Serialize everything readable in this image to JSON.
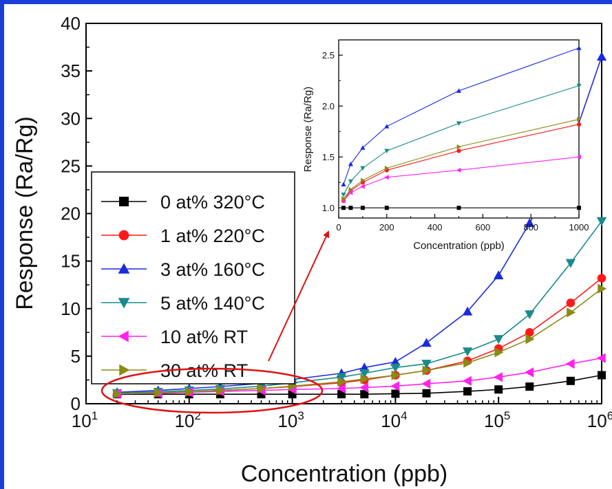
{
  "chart_data": [
    {
      "type": "line",
      "xscale": "log",
      "xlim": [
        10,
        1000000
      ],
      "ylim": [
        0,
        40
      ],
      "xlabel": "Concentration (ppb)",
      "ylabel": "Response (Ra/Rg)",
      "title": "",
      "xtick_bases": [
        "10",
        "10",
        "10",
        "10",
        "10",
        "10"
      ],
      "xtick_exps": [
        "1",
        "2",
        "3",
        "4",
        "5",
        "6"
      ],
      "yticks": [
        "0",
        "5",
        "10",
        "15",
        "20",
        "25",
        "30",
        "35",
        "40"
      ],
      "legend_position": "center-left",
      "series": [
        {
          "name": "0 at% 320°C",
          "color": "#000000",
          "marker": "square",
          "x": [
            20,
            50,
            100,
            200,
            500,
            1000,
            3000,
            5000,
            10000,
            20000,
            50000,
            100000,
            200000,
            500000,
            1000000
          ],
          "y": [
            1.0,
            1.0,
            1.0,
            1.0,
            1.0,
            1.0,
            1.0,
            1.0,
            1.05,
            1.1,
            1.3,
            1.5,
            1.8,
            2.4,
            3.0
          ]
        },
        {
          "name": "1 at% 220°C",
          "color": "#ff1a1a",
          "marker": "circle",
          "x": [
            20,
            50,
            100,
            200,
            500,
            1000,
            3000,
            5000,
            10000,
            20000,
            50000,
            100000,
            200000,
            500000,
            1000000
          ],
          "y": [
            1.05,
            1.15,
            1.25,
            1.4,
            1.6,
            1.8,
            2.2,
            2.5,
            3.0,
            3.5,
            4.5,
            5.8,
            7.5,
            10.6,
            13.2
          ]
        },
        {
          "name": "3 at% 160°C",
          "color": "#1a2bdd",
          "marker": "triangle-up",
          "x": [
            20,
            50,
            100,
            200,
            500,
            1000,
            3000,
            5000,
            10000,
            20000,
            50000,
            100000,
            200000,
            500000,
            1000000
          ],
          "y": [
            1.2,
            1.4,
            1.6,
            1.8,
            2.15,
            2.55,
            3.2,
            3.8,
            4.4,
            6.4,
            9.7,
            13.5,
            19.0,
            27.0,
            36.5
          ]
        },
        {
          "name": "5 at% 140°C",
          "color": "#1a8a8a",
          "marker": "triangle-down",
          "x": [
            20,
            50,
            100,
            200,
            500,
            1000,
            3000,
            5000,
            10000,
            20000,
            50000,
            100000,
            200000,
            500000,
            1000000
          ],
          "y": [
            1.1,
            1.25,
            1.4,
            1.55,
            1.85,
            2.2,
            2.8,
            3.2,
            3.8,
            4.2,
            5.5,
            6.8,
            9.4,
            14.8,
            19.2
          ]
        },
        {
          "name": "10 at% RT",
          "color": "#ff22ee",
          "marker": "triangle-left",
          "x": [
            20,
            50,
            100,
            200,
            500,
            1000,
            3000,
            5000,
            10000,
            20000,
            50000,
            100000,
            200000,
            500000,
            1000000
          ],
          "y": [
            1.05,
            1.1,
            1.2,
            1.3,
            1.4,
            1.5,
            1.6,
            1.7,
            1.85,
            2.1,
            2.4,
            2.8,
            3.3,
            4.2,
            4.8
          ]
        },
        {
          "name": "30 at% RT",
          "color": "#8a8a14",
          "marker": "triangle-right",
          "x": [
            20,
            50,
            100,
            200,
            500,
            1000,
            3000,
            5000,
            10000,
            20000,
            50000,
            100000,
            200000,
            500000,
            1000000
          ],
          "y": [
            1.05,
            1.15,
            1.25,
            1.4,
            1.6,
            1.85,
            2.3,
            2.6,
            3.0,
            3.5,
            4.3,
            5.4,
            6.8,
            9.6,
            12.1
          ]
        }
      ]
    },
    {
      "type": "line",
      "inset": true,
      "xlim": [
        0,
        1000
      ],
      "ylim": [
        0.9,
        2.65
      ],
      "xlabel": "Concentration (ppb)",
      "ylabel": "Response (Ra/Rg)",
      "title": "",
      "xticks": [
        "0",
        "200",
        "400",
        "600",
        "800",
        "1000"
      ],
      "yticks": [
        "1.0",
        "1.5",
        "2.0",
        "2.5"
      ],
      "series": [
        {
          "color": "#000000",
          "marker": "square",
          "x": [
            20,
            50,
            100,
            200,
            500,
            1000
          ],
          "y": [
            1.0,
            1.0,
            1.0,
            1.0,
            1.0,
            1.0
          ]
        },
        {
          "color": "#ff1a1a",
          "marker": "circle",
          "x": [
            20,
            50,
            100,
            200,
            500,
            1000
          ],
          "y": [
            1.07,
            1.17,
            1.25,
            1.37,
            1.56,
            1.82
          ]
        },
        {
          "color": "#1a2bdd",
          "marker": "triangle-up",
          "x": [
            20,
            50,
            100,
            200,
            500,
            1000
          ],
          "y": [
            1.23,
            1.43,
            1.59,
            1.8,
            2.15,
            2.57
          ]
        },
        {
          "color": "#1a8a8a",
          "marker": "triangle-down",
          "x": [
            20,
            50,
            100,
            200,
            500,
            1000
          ],
          "y": [
            1.13,
            1.26,
            1.39,
            1.56,
            1.83,
            2.2
          ]
        },
        {
          "color": "#ff22ee",
          "marker": "triangle-left",
          "x": [
            20,
            50,
            100,
            200,
            500,
            1000
          ],
          "y": [
            1.07,
            1.15,
            1.21,
            1.3,
            1.37,
            1.5
          ]
        },
        {
          "color": "#8a8a14",
          "marker": "triangle-right",
          "x": [
            20,
            50,
            100,
            200,
            500,
            1000
          ],
          "y": [
            1.09,
            1.18,
            1.27,
            1.39,
            1.6,
            1.87
          ]
        }
      ]
    }
  ]
}
